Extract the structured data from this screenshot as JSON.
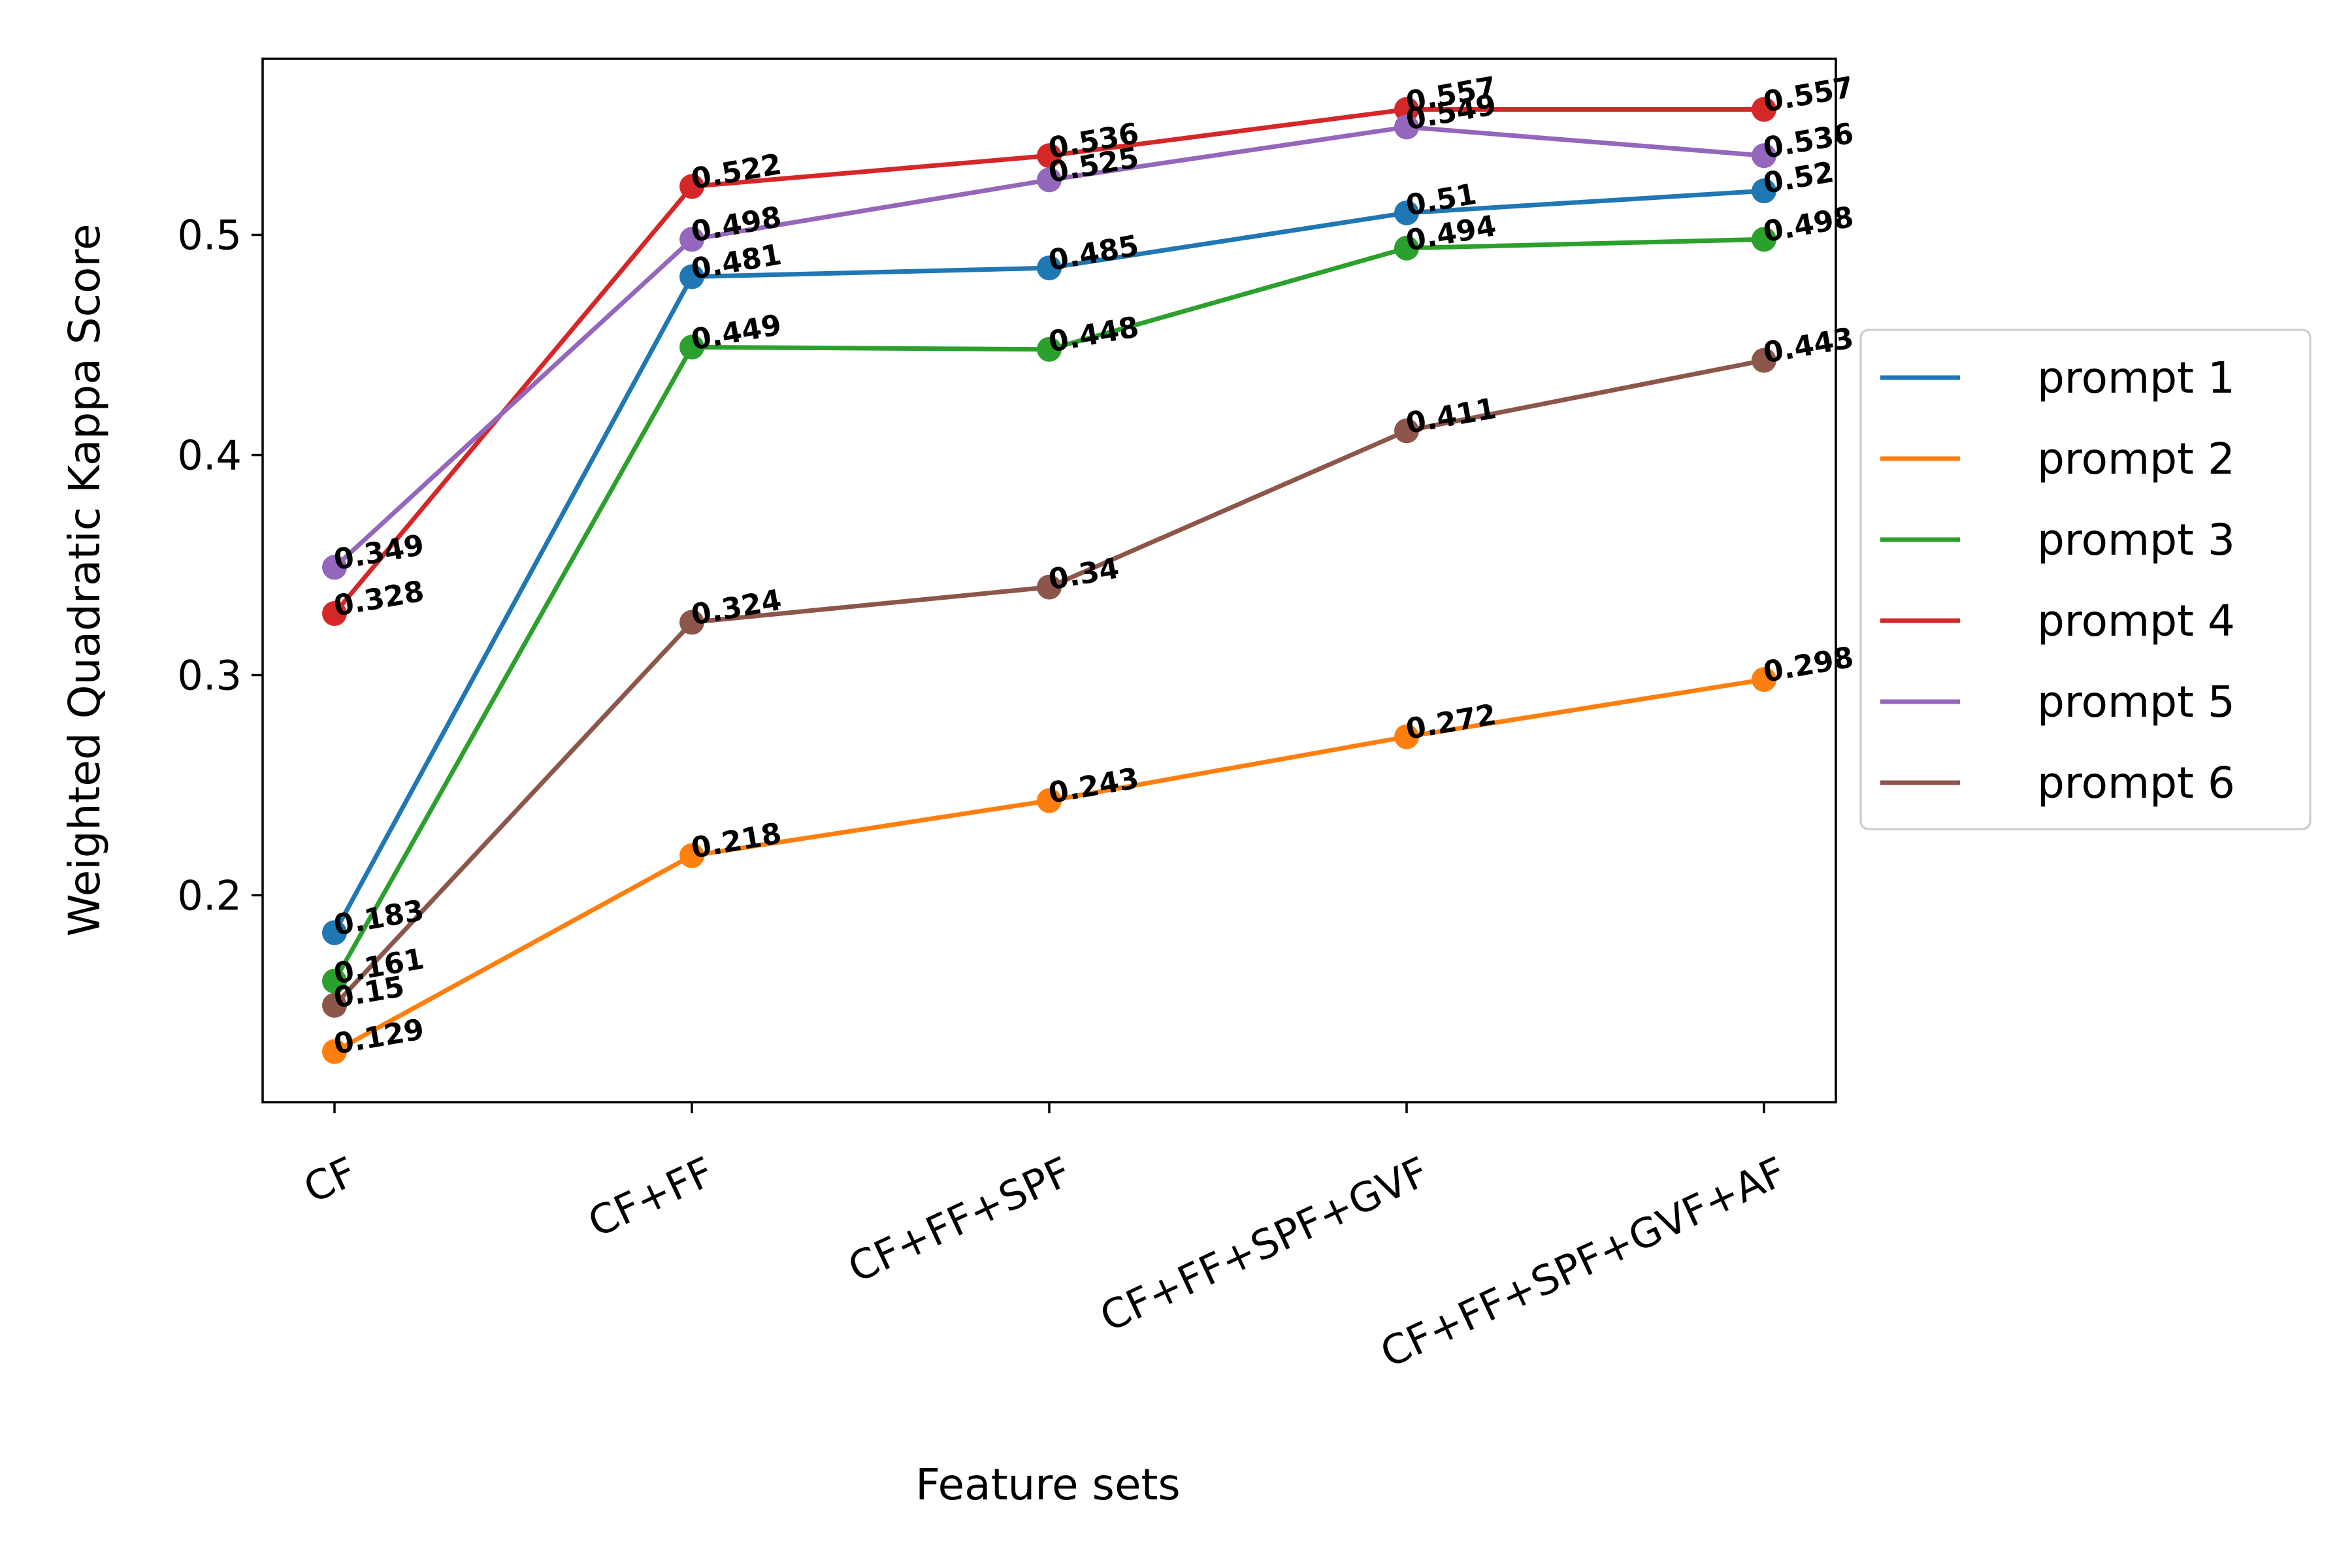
{
  "chart_data": {
    "type": "line",
    "xlabel": "Feature sets",
    "ylabel": "Weighted Quadratic Kappa Score",
    "categories": [
      "CF",
      "CF+FF",
      "CF+FF+SPF",
      "CF+FF+SPF+GVF",
      "CF+FF+SPF+GVF+AF"
    ],
    "ylim": [
      0.106,
      0.58
    ],
    "yticks": [
      0.2,
      0.3,
      0.4,
      0.5
    ],
    "ytick_labels": [
      "0.2",
      "0.3",
      "0.4",
      "0.5"
    ],
    "grid": false,
    "legend_position": "right (outside plot area)",
    "series": [
      {
        "name": "prompt 1",
        "color": "#1f77b4",
        "values": [
          0.183,
          0.481,
          0.485,
          0.51,
          0.52
        ],
        "labels": [
          "0.183",
          "0.481",
          "0.485",
          "0.51",
          "0.52"
        ]
      },
      {
        "name": "prompt 2",
        "color": "#ff7f0e",
        "values": [
          0.129,
          0.218,
          0.243,
          0.272,
          0.298
        ],
        "labels": [
          "0.129",
          "0.218",
          "0.243",
          "0.272",
          "0.298"
        ]
      },
      {
        "name": "prompt 3",
        "color": "#2ca02c",
        "values": [
          0.161,
          0.449,
          0.448,
          0.494,
          0.498
        ],
        "labels": [
          "0.161",
          "0.449",
          "0.448",
          "0.494",
          "0.498"
        ]
      },
      {
        "name": "prompt 4",
        "color": "#d62728",
        "values": [
          0.328,
          0.522,
          0.536,
          0.557,
          0.557
        ],
        "labels": [
          "0.328",
          "0.522",
          "0.536",
          "0.557",
          "0.557"
        ]
      },
      {
        "name": "prompt 5",
        "color": "#9467bd",
        "values": [
          0.349,
          0.498,
          0.525,
          0.549,
          0.536
        ],
        "labels": [
          "0.349",
          "0.498",
          "0.525",
          "0.549",
          "0.536"
        ]
      },
      {
        "name": "prompt 6",
        "color": "#8c564b",
        "values": [
          0.15,
          0.324,
          0.34,
          0.411,
          0.443
        ],
        "labels": [
          "0.15",
          "0.324",
          "0.34",
          "0.411",
          "0.443"
        ]
      }
    ]
  }
}
